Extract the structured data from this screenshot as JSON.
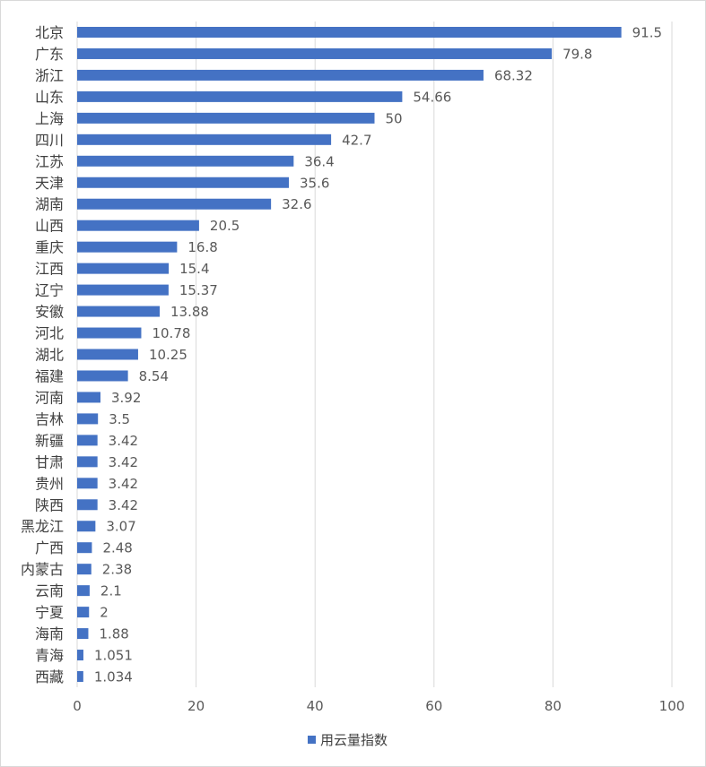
{
  "chart_data": {
    "type": "bar",
    "orientation": "horizontal",
    "categories": [
      "北京",
      "广东",
      "浙江",
      "山东",
      "上海",
      "四川",
      "江苏",
      "天津",
      "湖南",
      "山西",
      "重庆",
      "江西",
      "辽宁",
      "安徽",
      "河北",
      "湖北",
      "福建",
      "河南",
      "吉林",
      "新疆",
      "甘肃",
      "贵州",
      "陕西",
      "黑龙江",
      "广西",
      "内蒙古",
      "云南",
      "宁夏",
      "海南",
      "青海",
      "西藏"
    ],
    "series": [
      {
        "name": "用云量指数",
        "values": [
          91.5,
          79.8,
          68.32,
          54.66,
          50,
          42.7,
          36.4,
          35.6,
          32.6,
          20.5,
          16.8,
          15.4,
          15.37,
          13.88,
          10.78,
          10.25,
          8.54,
          3.92,
          3.5,
          3.42,
          3.42,
          3.42,
          3.42,
          3.07,
          2.48,
          2.38,
          2.1,
          2,
          1.88,
          1.051,
          1.034
        ],
        "labels": [
          "91.5",
          "79.8",
          "68.32",
          "54.66",
          "50",
          "42.7",
          "36.4",
          "35.6",
          "32.6",
          "20.5",
          "16.8",
          "15.4",
          "15.37",
          "13.88",
          "10.78",
          "10.25",
          "8.54",
          "3.92",
          "3.5",
          "3.42",
          "3.42",
          "3.42",
          "3.42",
          "3.07",
          "2.48",
          "2.38",
          "2.1",
          "2",
          "1.88",
          "1.051",
          "1.034"
        ],
        "color": "#4472c4"
      }
    ],
    "xlim": [
      0,
      100
    ],
    "xticks": [
      "0",
      "20",
      "40",
      "60",
      "80",
      "100"
    ],
    "grid": true,
    "legend": "bottom"
  }
}
